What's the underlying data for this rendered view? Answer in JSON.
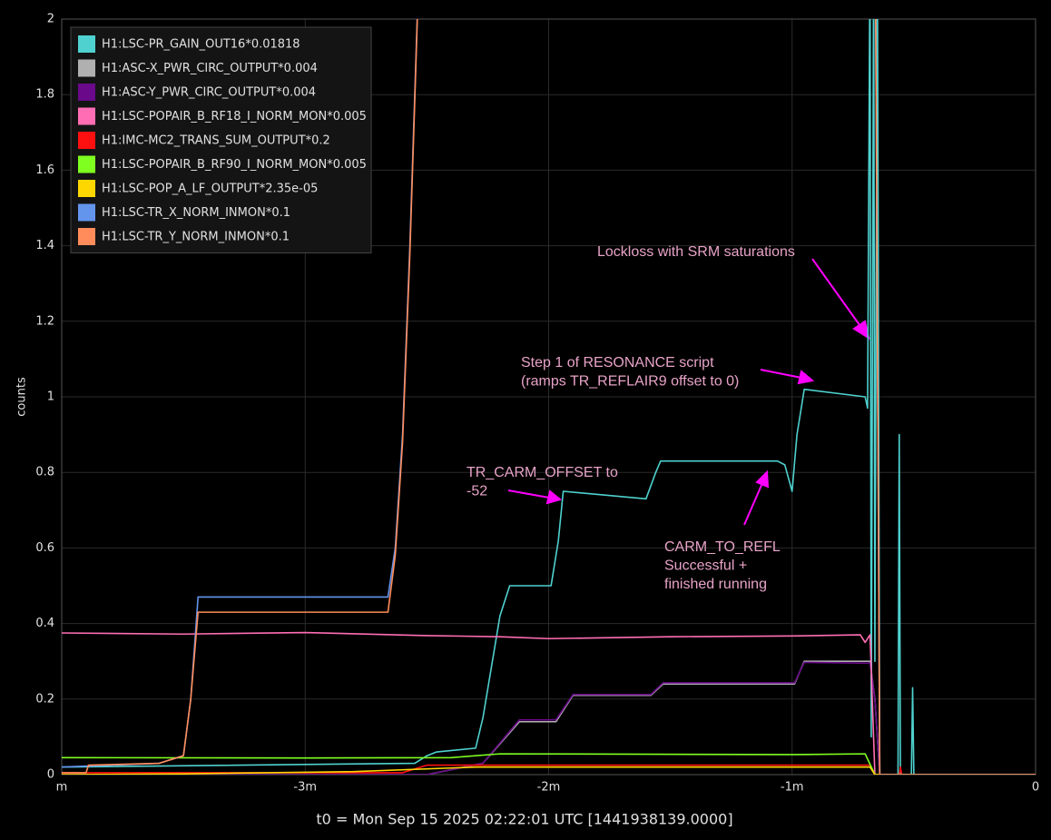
{
  "chart_data": {
    "type": "line",
    "ylabel": "counts",
    "xlabel": "t0 = Mon Sep 15 2025 02:22:01 UTC [1441938139.0000]",
    "xlim": [
      -4,
      0
    ],
    "ylim": [
      0,
      2
    ],
    "xticks": [
      {
        "value": -4,
        "label": "m"
      },
      {
        "value": -3,
        "label": "-3m"
      },
      {
        "value": -2,
        "label": "-2m"
      },
      {
        "value": -1,
        "label": "-1m"
      },
      0
    ],
    "yticks": [
      0,
      0.2,
      0.4,
      0.6,
      0.8,
      1,
      1.2,
      1.4,
      1.6,
      1.8,
      2
    ],
    "grid": true,
    "legend": "upper left",
    "series": [
      {
        "name": "H1:LSC-PR_GAIN_OUT16*0.01818",
        "color": "#4fd1cf",
        "x": [
          -4,
          -2.55,
          -2.5,
          -2.46,
          -2.3,
          -2.27,
          -2.2,
          -2.16,
          -1.99,
          -1.96,
          -1.94,
          -1.6,
          -1.56,
          -1.54,
          -1.06,
          -1.03,
          -1.0,
          -0.98,
          -0.95,
          -0.7,
          -0.69,
          -0.68,
          -0.675,
          -0.665,
          -0.66,
          -0.65,
          -0.64,
          -0.6,
          -0.565,
          -0.56,
          -0.555,
          -0.51,
          -0.505,
          -0.5,
          0
        ],
        "values": [
          0.02,
          0.03,
          0.05,
          0.06,
          0.07,
          0.15,
          0.42,
          0.5,
          0.5,
          0.62,
          0.75,
          0.73,
          0.8,
          0.83,
          0.83,
          0.82,
          0.75,
          0.9,
          1.02,
          1.0,
          0.97,
          2.2,
          0.1,
          2.2,
          0.3,
          2.2,
          0,
          0,
          0,
          0.9,
          0,
          0,
          0.23,
          0,
          0
        ]
      },
      {
        "name": "H1:ASC-X_PWR_CIRC_OUTPUT*0.004",
        "color": "#b0b0b0",
        "x": [
          -4,
          -2.5,
          -2.27,
          -2.12,
          -1.97,
          -1.9,
          -1.58,
          -1.53,
          -0.99,
          -0.95,
          -0.68,
          -0.66,
          -0.64,
          0
        ],
        "values": [
          0,
          0,
          0.03,
          0.14,
          0.14,
          0.21,
          0.21,
          0.24,
          0.24,
          0.3,
          0.3,
          0.2,
          0,
          0
        ]
      },
      {
        "name": "H1:ASC-Y_PWR_CIRC_OUTPUT*0.004",
        "color": "#6a0a8a",
        "x": [
          -4,
          -2.5,
          -2.27,
          -2.12,
          -1.97,
          -1.9,
          -1.58,
          -1.53,
          -0.99,
          -0.95,
          -0.68,
          -0.66,
          -0.64,
          0
        ],
        "values": [
          0,
          0,
          0.03,
          0.145,
          0.145,
          0.212,
          0.212,
          0.243,
          0.243,
          0.297,
          0.295,
          0.2,
          0,
          0
        ]
      },
      {
        "name": "H1:LSC-POPAIR_B_RF18_I_NORM_MON*0.005",
        "color": "#ff6eb4",
        "x": [
          -4,
          -3.5,
          -3,
          -2.5,
          -2.2,
          -2,
          -1.5,
          -1,
          -0.72,
          -0.7,
          -0.68,
          -0.66,
          0
        ],
        "values": [
          0.375,
          0.372,
          0.376,
          0.368,
          0.365,
          0.36,
          0.365,
          0.367,
          0.37,
          0.35,
          0.37,
          0,
          0
        ]
      },
      {
        "name": "H1:IMC-MC2_TRANS_SUM_OUTPUT*0.2",
        "color": "#ff1010",
        "x": [
          -4,
          -2.6,
          -2.5,
          -0.68,
          -0.66,
          -0.56,
          -0.555,
          -0.55,
          0
        ],
        "values": [
          0.005,
          0.005,
          0.025,
          0.025,
          0,
          0,
          0.02,
          0,
          0
        ]
      },
      {
        "name": "H1:LSC-POPAIR_B_RF90_I_NORM_MON*0.005",
        "color": "#7fff20",
        "x": [
          -4,
          -3,
          -2.4,
          -2.2,
          -1,
          -0.7,
          -0.66,
          0
        ],
        "values": [
          0.045,
          0.044,
          0.045,
          0.055,
          0.053,
          0.055,
          0,
          0
        ]
      },
      {
        "name": "H1:LSC-POP_A_LF_OUTPUT*2.35e-05",
        "color": "#ffd700",
        "x": [
          -4,
          -3.5,
          -2.8,
          -2.3,
          -0.68,
          -0.66,
          0
        ],
        "values": [
          0,
          0.002,
          0.008,
          0.02,
          0.02,
          0,
          0
        ]
      },
      {
        "name": "H1:LSC-TR_X_NORM_INMON*0.1",
        "color": "#6495ed",
        "x": [
          -4,
          -3.6,
          -3.5,
          -3.47,
          -3.44,
          -2.66,
          -2.63,
          -2.6,
          -2.57,
          -2.55,
          -2.52,
          -0.66,
          -0.64,
          0
        ],
        "values": [
          0.02,
          0.03,
          0.05,
          0.2,
          0.47,
          0.47,
          0.6,
          0.9,
          1.4,
          1.8,
          2.4,
          2.4,
          0,
          0
        ]
      },
      {
        "name": "H1:LSC-TR_Y_NORM_INMON*0.1",
        "color": "#ff8c5a",
        "x": [
          -4,
          -3.9,
          -3.89,
          -3.6,
          -3.5,
          -3.47,
          -3.44,
          -2.66,
          -2.63,
          -2.6,
          -2.57,
          -2.55,
          -2.52,
          -0.66,
          -0.64,
          0
        ],
        "values": [
          0.005,
          0.005,
          0.025,
          0.03,
          0.05,
          0.2,
          0.43,
          0.43,
          0.58,
          0.88,
          1.38,
          1.78,
          2.4,
          2.4,
          0,
          0
        ]
      }
    ],
    "annotations": [
      {
        "lines": [
          "Lockloss with SRM saturations"
        ]
      },
      {
        "lines": [
          "Step 1 of RESONANCE script",
          "(ramps TR_REFLAIR9 offset to 0)"
        ]
      },
      {
        "lines": [
          "TR_CARM_OFFSET to",
          "-52"
        ]
      },
      {
        "lines": [
          "CARM_TO_REFL",
          "Successful +",
          "finished running"
        ]
      }
    ]
  }
}
